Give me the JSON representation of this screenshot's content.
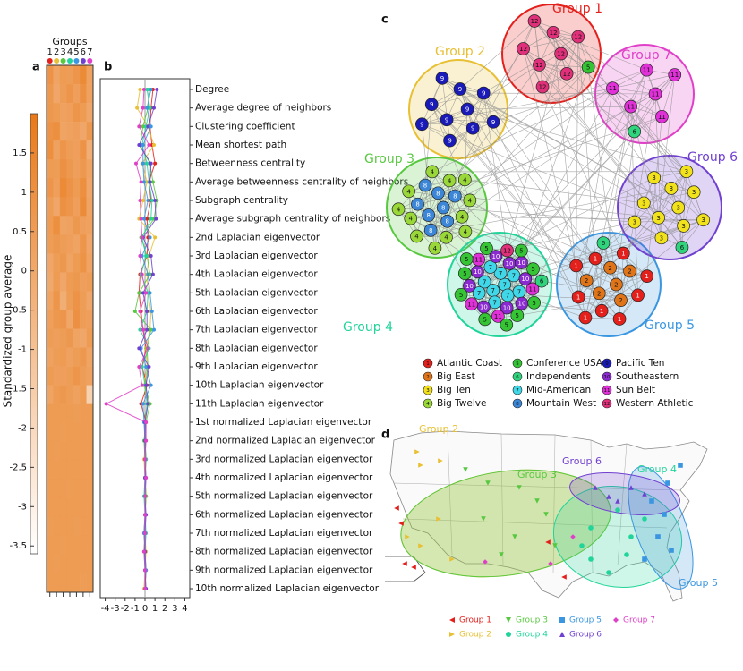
{
  "panel_a": {
    "label": "a",
    "groups_title": "Groups",
    "groups": [
      "1",
      "2",
      "3",
      "4",
      "5",
      "6",
      "7"
    ],
    "colorbar_title": "Standardized group average",
    "colorbar_lim": [
      -3.6,
      2.0
    ],
    "colorbar_ticks": [
      1.5,
      1,
      0.5,
      0,
      -0.5,
      -1,
      -1.5,
      -2,
      -2.5,
      -3,
      -3.5
    ],
    "colormap": [
      "#ffffff",
      "#e8791a"
    ],
    "heatmap": [
      [
        0.9,
        0.2,
        0.6,
        0.5,
        0.8,
        1.3,
        0.3
      ],
      [
        0.7,
        0.1,
        0.5,
        0.8,
        0.4,
        1.0,
        0.3
      ],
      [
        0.7,
        0.6,
        0.3,
        0.4,
        0.8,
        0.6,
        0.1
      ],
      [
        0.9,
        1.1,
        0.2,
        0.3,
        0.4,
        0.1,
        0.7
      ],
      [
        1.1,
        0.3,
        0.8,
        0.5,
        0.4,
        0.9,
        -0.2
      ],
      [
        0.6,
        0.5,
        1.0,
        0.7,
        0.4,
        0.7,
        0.2
      ],
      [
        0.8,
        0.4,
        1.3,
        0.9,
        0.6,
        1.1,
        0.1
      ],
      [
        0.5,
        0.1,
        1.0,
        0.8,
        0.4,
        1.2,
        0.2
      ],
      [
        0.6,
        1.1,
        0.2,
        0.3,
        0.7,
        0.4,
        0.3
      ],
      [
        0.5,
        0.7,
        0.5,
        0.4,
        0.2,
        0.8,
        0.1
      ],
      [
        0.1,
        0.5,
        0.7,
        0.2,
        0.6,
        0.9,
        0.2
      ],
      [
        0.0,
        0.6,
        0.1,
        0.6,
        0.7,
        0.4,
        0.5
      ],
      [
        0.2,
        0.8,
        -0.2,
        0.5,
        0.9,
        0.5,
        0.1
      ],
      [
        0.4,
        0.7,
        0.8,
        0.1,
        1.0,
        0.5,
        0.4
      ],
      [
        0.5,
        0.4,
        0.5,
        0.7,
        0.2,
        0.1,
        0.6
      ],
      [
        0.3,
        0.5,
        0.6,
        0.3,
        0.5,
        0.7,
        0.2
      ],
      [
        0.6,
        0.4,
        0.4,
        0.5,
        0.8,
        0.5,
        0.3
      ],
      [
        0.2,
        0.6,
        0.7,
        0.5,
        0.3,
        0.6,
        -1.7
      ],
      [
        0.6,
        0.6,
        0.6,
        0.6,
        0.5,
        0.6,
        0.6
      ],
      [
        0.6,
        0.6,
        0.5,
        0.6,
        0.6,
        0.6,
        0.6
      ],
      [
        0.6,
        0.5,
        0.6,
        0.6,
        0.6,
        0.6,
        0.6
      ],
      [
        0.6,
        0.6,
        0.6,
        0.6,
        0.6,
        0.6,
        0.6
      ],
      [
        0.6,
        0.6,
        0.6,
        0.5,
        0.6,
        0.6,
        0.6
      ],
      [
        0.6,
        0.6,
        0.6,
        0.6,
        0.6,
        0.6,
        0.6
      ],
      [
        0.5,
        0.6,
        0.6,
        0.6,
        0.5,
        0.6,
        0.6
      ],
      [
        0.6,
        0.6,
        0.5,
        0.6,
        0.6,
        0.6,
        0.6
      ],
      [
        0.6,
        0.5,
        0.6,
        0.6,
        0.6,
        0.6,
        0.6
      ],
      [
        0.6,
        0.6,
        0.6,
        0.6,
        0.6,
        0.5,
        0.6
      ]
    ]
  },
  "panel_b": {
    "label": "b",
    "xlim": [
      -4.5,
      4.5
    ],
    "xticks": [
      -4,
      -3,
      -2,
      -1,
      0,
      1,
      2,
      3,
      4
    ],
    "features": [
      "Degree",
      "Average degree of neighbors",
      "Clustering coefficient",
      "Mean shortest path",
      "Betweenness centrality",
      "Average betweenness centrality of neighbors",
      "Subgraph centrality",
      "Average subgraph centrality of neighbors",
      "2nd Laplacian eigenvector",
      "3rd Laplacian eigenvector",
      "4th Laplacian eigenvector",
      "5th Laplacian eigenvector",
      "6th Laplacian eigenvector",
      "7th Laplacian eigenvector",
      "8th Laplacian eigenvector",
      "9th Laplacian eigenvector",
      "10th Laplacian eigenvector",
      "11th Laplacian eigenvector",
      "1st normalized Laplacian eigenvector",
      "2nd normalized Laplacian eigenvector",
      "3rd normalized Laplacian eigenvector",
      "4th normalized Laplacian eigenvector",
      "5th normalized Laplacian eigenvector",
      "6th normalized Laplacian eigenvector",
      "7th normalized Laplacian eigenvector",
      "8th normalized Laplacian eigenvector",
      "9th normalized Laplacian eigenvector",
      "10th normalized Laplacian eigenvector"
    ],
    "group_means": [
      [
        0.8,
        0.6,
        0.5,
        0.7,
        1.0,
        0.4,
        0.6,
        0.2,
        0.3,
        0.2,
        -0.5,
        -0.6,
        -0.4,
        -0.2,
        0.1,
        -0.3,
        0.2,
        -0.4,
        0.1,
        0,
        0.1,
        0,
        0.1,
        0,
        -0.1,
        0,
        0.1,
        0
      ],
      [
        -0.5,
        -0.8,
        0.3,
        0.9,
        -0.3,
        0.2,
        -0.2,
        -0.6,
        1.0,
        0.4,
        0.2,
        0.3,
        0.6,
        0.5,
        0.1,
        0.2,
        -0.1,
        0.3,
        0,
        0.1,
        -0.1,
        0,
        0.1,
        0,
        0,
        0.1,
        0,
        -0.1
      ],
      [
        0.4,
        0.3,
        -0.2,
        -0.5,
        0.5,
        0.8,
        1.2,
        0.9,
        -0.4,
        0.2,
        0.5,
        -0.6,
        -1.0,
        0.6,
        0.2,
        0.3,
        0,
        0.5,
        0.1,
        -0.1,
        0,
        0,
        0.1,
        0,
        0,
        -0.1,
        0,
        0
      ],
      [
        0.2,
        0.5,
        0.1,
        -0.3,
        0.2,
        0.4,
        0.7,
        0.6,
        -0.3,
        0.1,
        -0.4,
        0.3,
        0.2,
        -0.5,
        0.4,
        -0.3,
        0,
        0.2,
        0,
        0,
        0.1,
        0,
        -0.1,
        0,
        0.1,
        0,
        0,
        0
      ],
      [
        0.6,
        0.2,
        0.6,
        -0.2,
        -0.2,
        -0.1,
        0.3,
        -0.1,
        0.5,
        -0.3,
        0.3,
        0.5,
        0.7,
        0.9,
        -0.4,
        0.1,
        0.6,
        -0.2,
        -0.1,
        0,
        0,
        0.1,
        0,
        0,
        -0.1,
        0,
        0.1,
        0
      ],
      [
        1.2,
        0.9,
        0.3,
        -0.6,
        0.6,
        0.5,
        1.0,
        1.1,
        -0.2,
        0.6,
        0.8,
        -0.2,
        0.2,
        0.2,
        -0.6,
        0.4,
        0.1,
        0.3,
        0,
        0,
        0,
        0,
        0,
        0.1,
        0,
        0,
        0,
        0.1
      ],
      [
        -0.1,
        -0.2,
        -0.6,
        0.4,
        -0.9,
        -0.4,
        -0.5,
        -0.4,
        -0.3,
        -0.5,
        -0.3,
        0.1,
        -0.5,
        -0.2,
        0.3,
        -0.6,
        -0.3,
        -3.9,
        0.1,
        0.1,
        0,
        0.1,
        0,
        0,
        0,
        -0.1,
        0,
        0
      ]
    ]
  },
  "panel_c": {
    "label": "c",
    "conferences": [
      {
        "num": "1",
        "name": "Atlantic Coast",
        "color": "#e4201c"
      },
      {
        "num": "2",
        "name": "Big East",
        "color": "#e07418"
      },
      {
        "num": "3",
        "name": "Big Ten",
        "color": "#f2e21c"
      },
      {
        "num": "4",
        "name": "Big Twelve",
        "color": "#9ad83a"
      },
      {
        "num": "5",
        "name": "Conference USA",
        "color": "#34c434"
      },
      {
        "num": "6",
        "name": "Independents",
        "color": "#30d47c"
      },
      {
        "num": "7",
        "name": "Mid-American",
        "color": "#40d8e8"
      },
      {
        "num": "8",
        "name": "Mountain West",
        "color": "#3c86d8"
      },
      {
        "num": "9",
        "name": "Pacific Ten",
        "color": "#1a1ab8"
      },
      {
        "num": "10",
        "name": "Southeastern",
        "color": "#8a2ad0"
      },
      {
        "num": "11",
        "name": "Sun Belt",
        "color": "#e030d8"
      },
      {
        "num": "12",
        "name": "Western Athletic",
        "color": "#e0307a"
      }
    ]
  },
  "groups": [
    {
      "name": "Group 1",
      "color": "#e4201c",
      "marker": "triangle-left",
      "nodes": [
        "12",
        "12",
        "12",
        "12",
        "12",
        "12",
        "12",
        "12",
        "5"
      ]
    },
    {
      "name": "Group 2",
      "color": "#e8c034",
      "marker": "triangle-right",
      "nodes": [
        "9",
        "9",
        "9",
        "9",
        "9",
        "9",
        "9",
        "9",
        "9",
        "9"
      ]
    },
    {
      "name": "Group 3",
      "color": "#58c840",
      "marker": "triangle-down",
      "nodes": [
        "8",
        "8",
        "8",
        "8",
        "8",
        "8",
        "8",
        "8",
        "4",
        "4",
        "4",
        "4",
        "4",
        "4",
        "4",
        "4",
        "4",
        "4",
        "4",
        "4"
      ]
    },
    {
      "name": "Group 4",
      "color": "#20d49a",
      "marker": "circle",
      "nodes": [
        "7",
        "7",
        "7",
        "7",
        "7",
        "7",
        "7",
        "7",
        "7",
        "7",
        "10",
        "10",
        "10",
        "10",
        "10",
        "10",
        "10",
        "10",
        "10",
        "11",
        "11",
        "11",
        "11",
        "12",
        "5",
        "5",
        "5",
        "5",
        "5",
        "5",
        "5",
        "5",
        "5",
        "5",
        "6"
      ]
    },
    {
      "name": "Group 5",
      "color": "#3a96e0",
      "marker": "square",
      "nodes": [
        "2",
        "2",
        "2",
        "2",
        "2",
        "2",
        "1",
        "1",
        "1",
        "1",
        "1",
        "1",
        "1",
        "1",
        "1",
        "6"
      ]
    },
    {
      "name": "Group 6",
      "color": "#7040d0",
      "marker": "triangle-up",
      "nodes": [
        "3",
        "3",
        "3",
        "3",
        "3",
        "3",
        "3",
        "3",
        "3",
        "3",
        "3",
        "6"
      ]
    },
    {
      "name": "Group 7",
      "color": "#e040c8",
      "marker": "diamond",
      "nodes": [
        "11",
        "11",
        "11",
        "11",
        "11",
        "11",
        "6"
      ]
    }
  ],
  "panel_d": {
    "label": "d"
  }
}
